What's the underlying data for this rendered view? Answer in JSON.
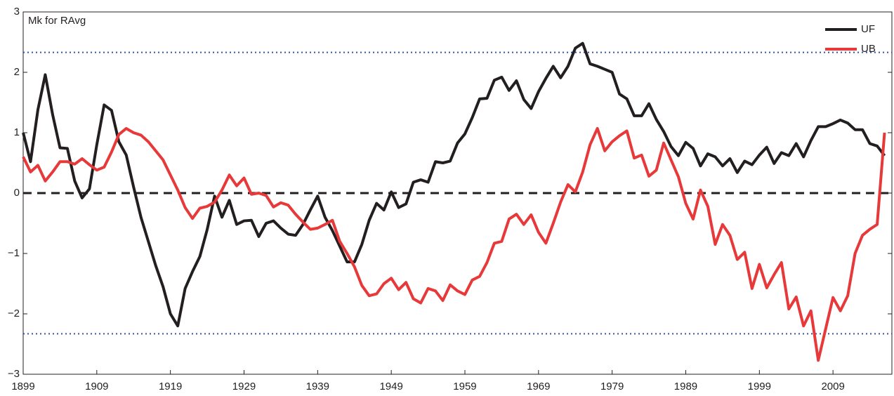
{
  "chart_data": {
    "type": "line",
    "annotation": "Mk for RAvg",
    "x": [
      1899,
      1900,
      1901,
      1902,
      1903,
      1904,
      1905,
      1906,
      1907,
      1908,
      1909,
      1910,
      1911,
      1912,
      1913,
      1914,
      1915,
      1916,
      1917,
      1918,
      1919,
      1920,
      1921,
      1922,
      1923,
      1924,
      1925,
      1926,
      1927,
      1928,
      1929,
      1930,
      1931,
      1932,
      1933,
      1934,
      1935,
      1936,
      1937,
      1938,
      1939,
      1940,
      1941,
      1942,
      1943,
      1944,
      1945,
      1946,
      1947,
      1948,
      1949,
      1950,
      1951,
      1952,
      1953,
      1954,
      1955,
      1956,
      1957,
      1958,
      1959,
      1960,
      1961,
      1962,
      1963,
      1964,
      1965,
      1966,
      1967,
      1968,
      1969,
      1970,
      1971,
      1972,
      1973,
      1974,
      1975,
      1976,
      1977,
      1978,
      1979,
      1980,
      1981,
      1982,
      1983,
      1984,
      1985,
      1986,
      1987,
      1988,
      1989,
      1990,
      1991,
      1992,
      1993,
      1994,
      1995,
      1996,
      1997,
      1998,
      1999,
      2000,
      2001,
      2002,
      2003,
      2004,
      2005,
      2006,
      2007,
      2008,
      2009,
      2010,
      2011,
      2012,
      2013,
      2014,
      2015,
      2016
    ],
    "series": [
      {
        "name": "UF",
        "color": "#231f20",
        "values": [
          1.0,
          0.52,
          1.38,
          1.96,
          1.3,
          0.75,
          0.74,
          0.2,
          -0.08,
          0.07,
          0.8,
          1.46,
          1.37,
          0.85,
          0.63,
          0.1,
          -0.4,
          -0.8,
          -1.2,
          -1.55,
          -2.0,
          -2.2,
          -1.58,
          -1.3,
          -1.05,
          -0.6,
          -0.05,
          -0.4,
          -0.12,
          -0.52,
          -0.46,
          -0.45,
          -0.72,
          -0.5,
          -0.46,
          -0.58,
          -0.68,
          -0.7,
          -0.52,
          -0.28,
          -0.05,
          -0.4,
          -0.62,
          -0.88,
          -1.14,
          -1.14,
          -0.85,
          -0.45,
          -0.17,
          -0.28,
          0.02,
          -0.24,
          -0.18,
          0.18,
          0.22,
          0.18,
          0.52,
          0.5,
          0.53,
          0.83,
          0.98,
          1.25,
          1.56,
          1.57,
          1.87,
          1.92,
          1.7,
          1.86,
          1.55,
          1.4,
          1.68,
          1.9,
          2.1,
          1.91,
          2.1,
          2.4,
          2.48,
          2.14,
          2.1,
          2.05,
          2.0,
          1.64,
          1.56,
          1.28,
          1.28,
          1.48,
          1.22,
          1.02,
          0.77,
          0.62,
          0.84,
          0.74,
          0.45,
          0.65,
          0.6,
          0.45,
          0.57,
          0.34,
          0.53,
          0.47,
          0.63,
          0.76,
          0.49,
          0.67,
          0.62,
          0.82,
          0.6,
          0.87,
          1.1,
          1.1,
          1.15,
          1.21,
          1.16,
          1.05,
          1.05,
          0.82,
          0.78,
          0.62
        ]
      },
      {
        "name": "UB",
        "color": "#e8393a",
        "values": [
          0.6,
          0.35,
          0.46,
          0.2,
          0.35,
          0.52,
          0.52,
          0.48,
          0.57,
          0.47,
          0.38,
          0.43,
          0.68,
          0.97,
          1.07,
          1.0,
          0.96,
          0.85,
          0.7,
          0.55,
          0.3,
          0.05,
          -0.24,
          -0.42,
          -0.25,
          -0.22,
          -0.15,
          0.05,
          0.3,
          0.12,
          0.25,
          -0.02,
          0.0,
          -0.04,
          -0.23,
          -0.16,
          -0.2,
          -0.35,
          -0.48,
          -0.6,
          -0.58,
          -0.52,
          -0.45,
          -0.8,
          -1.0,
          -1.22,
          -1.53,
          -1.7,
          -1.67,
          -1.5,
          -1.41,
          -1.6,
          -1.48,
          -1.75,
          -1.82,
          -1.58,
          -1.62,
          -1.78,
          -1.52,
          -1.62,
          -1.68,
          -1.44,
          -1.38,
          -1.15,
          -0.83,
          -0.8,
          -0.43,
          -0.35,
          -0.52,
          -0.36,
          -0.65,
          -0.83,
          -0.5,
          -0.15,
          0.14,
          0.02,
          0.35,
          0.8,
          1.07,
          0.7,
          0.85,
          0.95,
          1.03,
          0.58,
          0.63,
          0.28,
          0.38,
          0.83,
          0.55,
          0.27,
          -0.17,
          -0.43,
          0.05,
          -0.22,
          -0.85,
          -0.52,
          -0.7,
          -1.1,
          -0.98,
          -1.58,
          -1.18,
          -1.57,
          -1.35,
          -1.15,
          -1.92,
          -1.72,
          -2.2,
          -1.95,
          -2.77,
          -2.25,
          -1.73,
          -1.95,
          -1.7,
          -1.0,
          -0.7,
          -0.6,
          -0.52,
          1.0
        ]
      }
    ],
    "xlim": [
      1899,
      2017
    ],
    "xticks": [
      1899,
      1909,
      1919,
      1929,
      1939,
      1949,
      1959,
      1969,
      1979,
      1989,
      1999,
      2009
    ],
    "ylim": [
      -3,
      3
    ],
    "yticks": [
      {
        "value": -3,
        "label": "−3"
      },
      {
        "value": -2,
        "label": "−2"
      },
      {
        "value": -1,
        "label": "−1"
      },
      0,
      1,
      2,
      3
    ],
    "reference_lines": [
      {
        "value": 0,
        "color": "#231f20",
        "style": "dashed"
      },
      {
        "value": 2.33,
        "color": "#3a4fb5",
        "style": "dotted"
      },
      {
        "value": -2.33,
        "color": "#3a4fb5",
        "style": "dotted"
      }
    ],
    "grid": false,
    "legend": "upper-right"
  }
}
